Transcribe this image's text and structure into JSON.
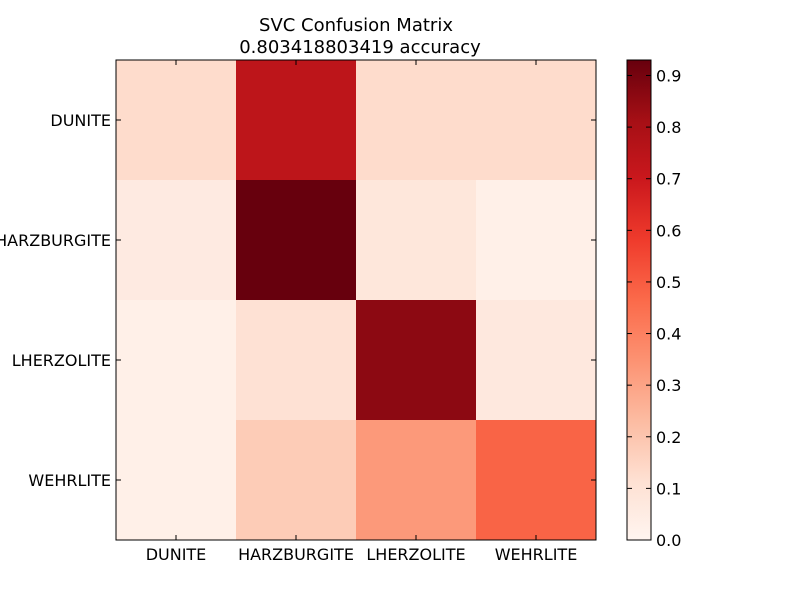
{
  "chart_data": {
    "type": "heatmap",
    "title": "SVC Confusion Matrix",
    "subtitle": "0.803418803419 accuracy",
    "xlabel": "",
    "ylabel": "",
    "row_labels": [
      "DUNITE",
      "HARZBURGITE",
      "LHERZOLITE",
      "WEHRLITE"
    ],
    "col_labels": [
      "DUNITE",
      "HARZBURGITE",
      "LHERZOLITE",
      "WEHRLITE"
    ],
    "values": [
      [
        0.13,
        0.74,
        0.13,
        0.13
      ],
      [
        0.06,
        0.93,
        0.08,
        0.03
      ],
      [
        0.03,
        0.11,
        0.86,
        0.07
      ],
      [
        0.03,
        0.18,
        0.33,
        0.48
      ]
    ],
    "colorbar": {
      "min": 0.0,
      "max": 0.93,
      "ticks": [
        0.0,
        0.1,
        0.2,
        0.3,
        0.4,
        0.5,
        0.6,
        0.7,
        0.8,
        0.9
      ],
      "tick_labels": [
        "0.0",
        "0.1",
        "0.2",
        "0.3",
        "0.4",
        "0.5",
        "0.6",
        "0.7",
        "0.8",
        "0.9"
      ],
      "colormap": "Reds",
      "stops": [
        "#fff5f0",
        "#fee0d2",
        "#fcbba1",
        "#fc9272",
        "#fb6a4a",
        "#ef3b2c",
        "#cb181d",
        "#a50f15",
        "#67000d"
      ]
    },
    "grid": false
  }
}
